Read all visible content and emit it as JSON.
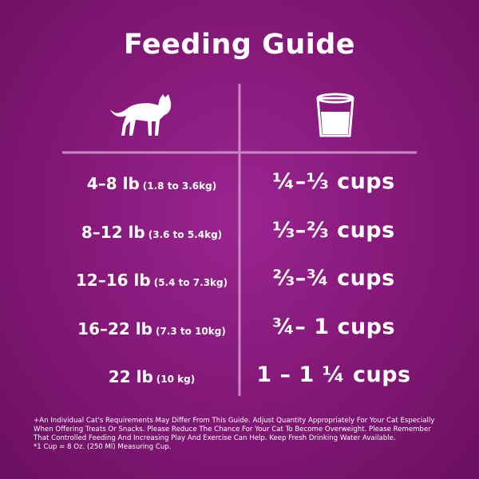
{
  "title": "Feeding Guide",
  "rows": [
    {
      "weight": "4–8 lb",
      "metric": "(1.8 to 3.6kg)",
      "amount": "¼–⅓ cups"
    },
    {
      "weight": "8–12 lb",
      "metric": "(3.6 to 5.4kg)",
      "amount": "⅓–⅔ cups"
    },
    {
      "weight": "12–16 lb",
      "metric": "(5.4 to 7.3kg)",
      "amount": "⅔–¾ cups"
    },
    {
      "weight": "16–22 lb",
      "metric": "(7.3 to 10kg)",
      "amount": "¾– 1 cups"
    },
    {
      "weight": "22 lb",
      "metric": "(10 kg)",
      "amount": "1 – 1 ¼ cups"
    }
  ],
  "footnote": [
    "+An Individual Cat's Requirements May Differ From This Guide.  Adjust Quantity Appropriately For Your Cat Especially",
    "When Offering Treats Or Snacks.  Please Reduce The Chance For Your Cat To Become Overweight.  Please Remember",
    "That Controlled Feeding And Increasing Play And Exercise Can Help.  Keep Fresh Drinking Water Available.",
    "*1 Cup = 8 Oz. (250 Ml) Measuring Cup."
  ]
}
